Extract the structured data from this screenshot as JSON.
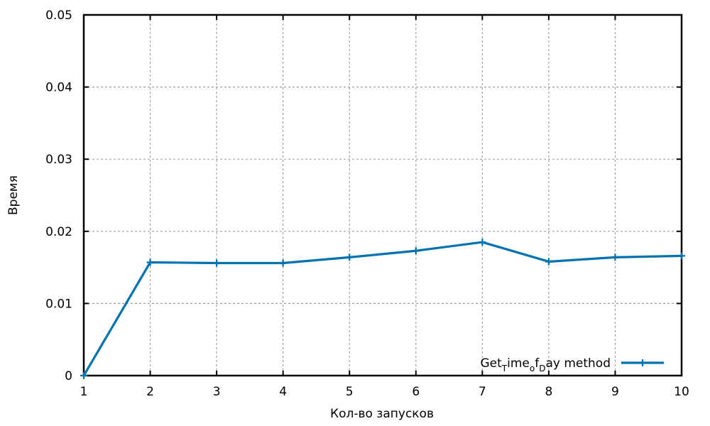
{
  "chart_data": {
    "type": "line",
    "title": "",
    "xlabel": "Кол-во запусков",
    "ylabel": "Время",
    "xlim": [
      1,
      10
    ],
    "ylim": [
      0,
      0.05
    ],
    "xticks": [
      "1",
      "2",
      "3",
      "4",
      "5",
      "6",
      "7",
      "8",
      "9",
      "10"
    ],
    "yticks": [
      "0",
      "0.01",
      "0.02",
      "0.03",
      "0.04",
      "0.05"
    ],
    "grid": true,
    "legend_position": "bottom-right",
    "series": [
      {
        "name": "Get_Time_of_Day method",
        "legend_parts": [
          "Get",
          "T",
          "ime",
          "o",
          "f",
          "D",
          "ay method"
        ],
        "color": "#0072b2",
        "x": [
          1,
          2,
          3,
          4,
          5,
          6,
          7,
          8,
          9,
          10
        ],
        "y": [
          0.0,
          0.0157,
          0.0156,
          0.0156,
          0.0164,
          0.0173,
          0.0185,
          0.0158,
          0.0164,
          0.0166
        ]
      }
    ]
  }
}
